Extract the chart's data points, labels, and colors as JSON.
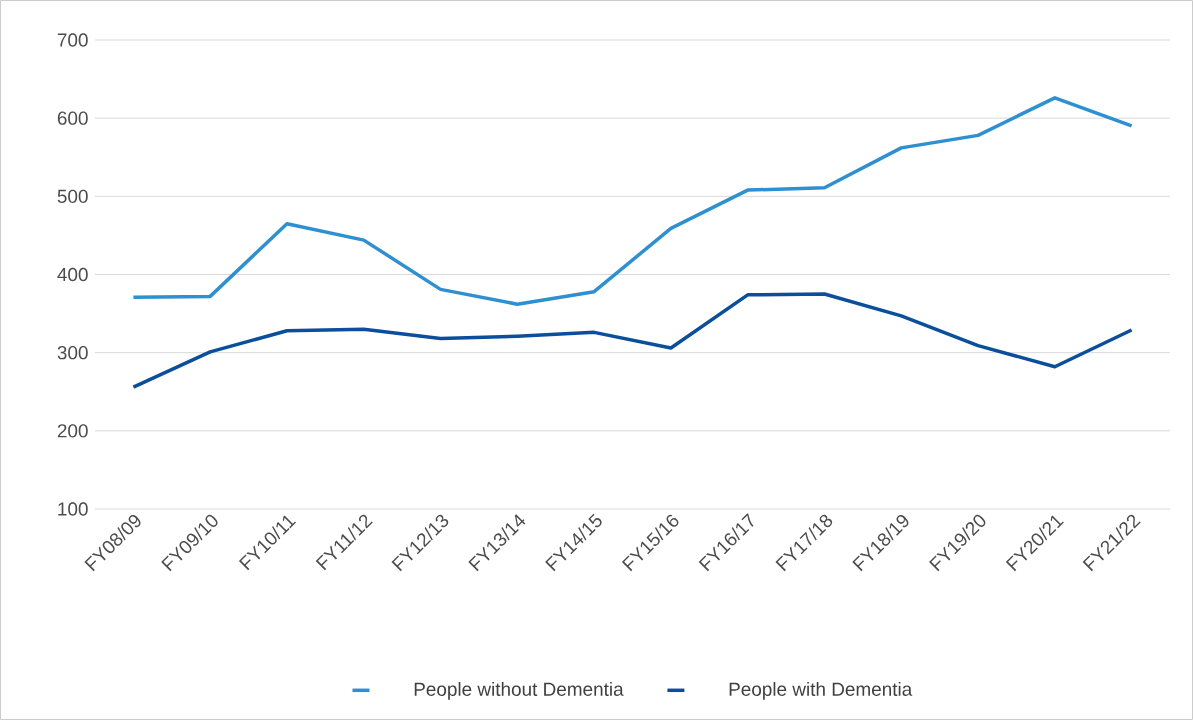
{
  "chart_data": {
    "type": "line",
    "categories": [
      "FY08/09",
      "FY09/10",
      "FY10/11",
      "FY11/12",
      "FY12/13",
      "FY13/14",
      "FY14/15",
      "FY15/16",
      "FY16/17",
      "FY17/18",
      "FY18/19",
      "FY19/20",
      "FY20/21",
      "FY21/22"
    ],
    "series": [
      {
        "name": "People without Dementia",
        "color": "#2e8fd1",
        "values": [
          371,
          372,
          465,
          444,
          381,
          362,
          378,
          459,
          508,
          511,
          562,
          578,
          626,
          590
        ]
      },
      {
        "name": "People with Dementia",
        "color": "#0b4f9c",
        "values": [
          256,
          301,
          328,
          330,
          318,
          321,
          326,
          306,
          374,
          375,
          347,
          309,
          282,
          329
        ]
      }
    ],
    "ylim": [
      100,
      700
    ],
    "yticks": [
      100,
      200,
      300,
      400,
      500,
      600,
      700
    ],
    "grid": "y",
    "legend": "bottom",
    "marker": "none",
    "line_style": "solid"
  }
}
